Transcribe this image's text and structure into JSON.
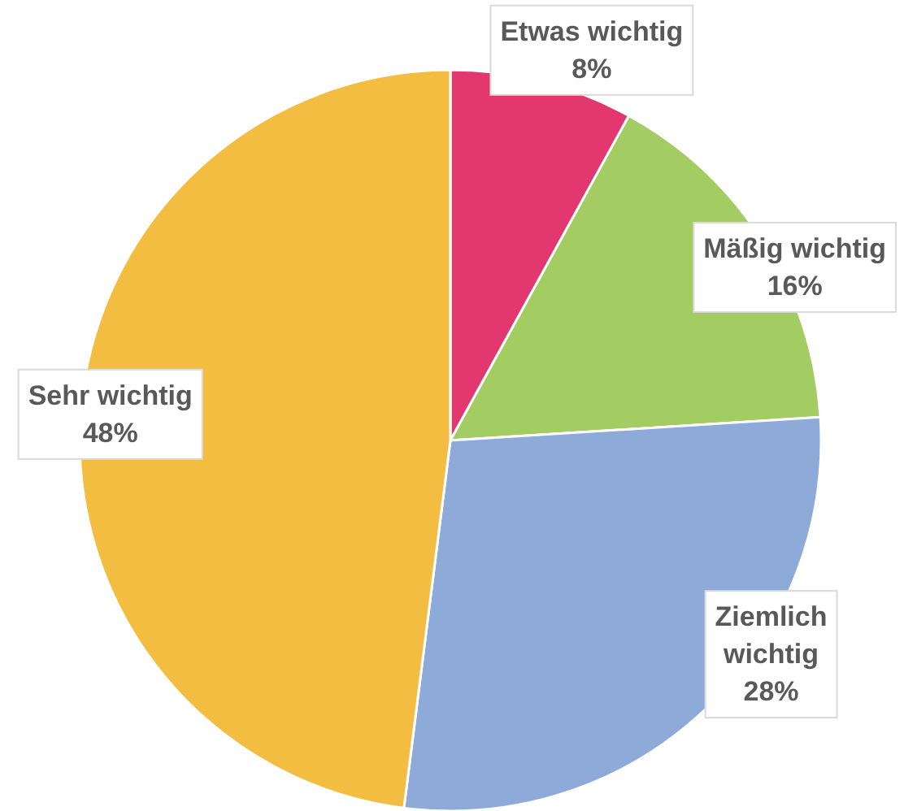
{
  "chart_data": {
    "type": "pie",
    "categories": [
      "Etwas wichtig",
      "Mäßig wichtig",
      "Ziemlich wichtig",
      "Sehr wichtig"
    ],
    "values": [
      8,
      16,
      28,
      48
    ],
    "colors": [
      "#e2386f",
      "#a3cc62",
      "#8eaad9",
      "#f3bd41"
    ],
    "value_labels": [
      "8%",
      "16%",
      "28%",
      "48%"
    ]
  }
}
